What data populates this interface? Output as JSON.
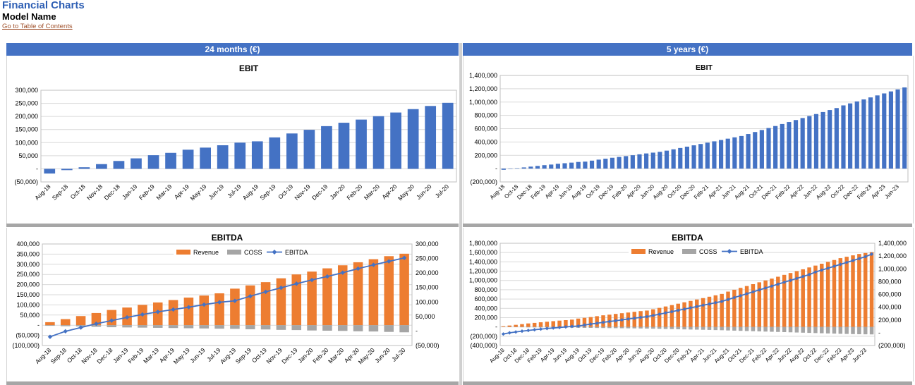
{
  "page": {
    "title": "Financial Charts",
    "subtitle": "Model Name",
    "toc_link": "Go to Table of Contents",
    "headers": {
      "left": "24 months (€)",
      "right": "5 years (€)"
    }
  },
  "colors": {
    "blue": "#4472c4",
    "orange": "#ed7d31",
    "gray": "#a5a5a5",
    "line": "#4472c4",
    "grid": "#d9d9d9"
  },
  "chart_data": [
    {
      "id": "ebit24",
      "type": "bar",
      "title": "EBIT",
      "categories": [
        "Aug-18",
        "Sep-18",
        "Oct-18",
        "Nov-18",
        "Dec-18",
        "Jan-19",
        "Feb-19",
        "Mar-19",
        "Apr-19",
        "May-19",
        "Jun-19",
        "Jul-19",
        "Aug-19",
        "Sep-19",
        "Oct-19",
        "Nov-19",
        "Dec-19",
        "Jan-20",
        "Feb-20",
        "Mar-20",
        "Apr-20",
        "May-20",
        "Jun-20",
        "Jul-20"
      ],
      "values": [
        -18000,
        -5000,
        6000,
        18000,
        30000,
        40000,
        52000,
        61000,
        73000,
        81000,
        90000,
        100000,
        105000,
        120000,
        135000,
        149000,
        163000,
        176000,
        188000,
        201000,
        215000,
        228000,
        240000,
        252000
      ],
      "ylim": [
        -50000,
        300000
      ],
      "yticks": [
        -50000,
        0,
        50000,
        100000,
        150000,
        200000,
        250000,
        300000
      ],
      "ytick_labels": [
        "(50,000)",
        "-",
        "50,000",
        "100,000",
        "150,000",
        "200,000",
        "250,000",
        "300,000"
      ]
    },
    {
      "id": "ebit60",
      "type": "bar",
      "title": "EBIT",
      "categories": [
        "Aug-18",
        "Sep-18",
        "Oct-18",
        "Nov-18",
        "Dec-18",
        "Jan-19",
        "Feb-19",
        "Mar-19",
        "Apr-19",
        "May-19",
        "Jun-19",
        "Jul-19",
        "Aug-19",
        "Sep-19",
        "Oct-19",
        "Nov-19",
        "Dec-19",
        "Jan-20",
        "Feb-20",
        "Mar-20",
        "Apr-20",
        "May-20",
        "Jun-20",
        "Jul-20",
        "Aug-20",
        "Sep-20",
        "Oct-20",
        "Nov-20",
        "Dec-20",
        "Jan-21",
        "Feb-21",
        "Mar-21",
        "Apr-21",
        "May-21",
        "Jun-21",
        "Jul-21",
        "Aug-21",
        "Sep-21",
        "Oct-21",
        "Nov-21",
        "Dec-21",
        "Jan-22",
        "Feb-22",
        "Mar-22",
        "Apr-22",
        "May-22",
        "Jun-22",
        "Jul-22",
        "Aug-22",
        "Sep-22",
        "Oct-22",
        "Nov-22",
        "Dec-22",
        "Jan-23",
        "Feb-23",
        "Mar-23",
        "Apr-23",
        "May-23",
        "Jun-23",
        "Jul-23"
      ],
      "values": [
        -18000,
        -5000,
        6000,
        18000,
        30000,
        40000,
        52000,
        61000,
        73000,
        81000,
        90000,
        100000,
        105000,
        120000,
        135000,
        149000,
        163000,
        176000,
        188000,
        201000,
        215000,
        228000,
        240000,
        252000,
        270000,
        290000,
        310000,
        330000,
        350000,
        370000,
        390000,
        410000,
        430000,
        450000,
        470000,
        490000,
        520000,
        550000,
        580000,
        610000,
        640000,
        670000,
        700000,
        730000,
        760000,
        790000,
        820000,
        850000,
        880000,
        910000,
        950000,
        980000,
        1010000,
        1040000,
        1070000,
        1100000,
        1130000,
        1160000,
        1190000,
        1220000
      ],
      "label_every": 2,
      "ylim": [
        -200000,
        1400000
      ],
      "yticks": [
        -200000,
        0,
        200000,
        400000,
        600000,
        800000,
        1000000,
        1200000,
        1400000
      ],
      "ytick_labels": [
        "(200,000)",
        "-",
        "200,000",
        "400,000",
        "600,000",
        "800,000",
        "1,000,000",
        "1,200,000",
        "1,400,000"
      ]
    },
    {
      "id": "ebitda24",
      "type": "bar+line",
      "title": "EBITDA",
      "categories": [
        "Aug-18",
        "Sep-18",
        "Oct-18",
        "Nov-18",
        "Dec-18",
        "Jan-19",
        "Feb-19",
        "Mar-19",
        "Apr-19",
        "May-19",
        "Jun-19",
        "Jul-19",
        "Aug-19",
        "Sep-19",
        "Oct-19",
        "Nov-19",
        "Dec-19",
        "Jan-20",
        "Feb-20",
        "Mar-20",
        "Apr-20",
        "May-20",
        "Jun-20",
        "Jul-20"
      ],
      "legend": [
        "Revenue",
        "COSS",
        "EBITDA"
      ],
      "series": [
        {
          "name": "Revenue",
          "axis": "left",
          "values": [
            15000,
            30000,
            45000,
            60000,
            75000,
            87000,
            100000,
            112000,
            124000,
            136000,
            146000,
            157000,
            180000,
            196000,
            212000,
            231000,
            250000,
            264000,
            280000,
            295000,
            310000,
            325000,
            340000,
            352000
          ]
        },
        {
          "name": "COSS",
          "axis": "left",
          "values": [
            -3000,
            -5000,
            -6000,
            -8000,
            -10000,
            -11000,
            -12000,
            -13000,
            -14000,
            -15000,
            -16000,
            -17000,
            -18000,
            -20000,
            -21000,
            -23000,
            -24000,
            -26000,
            -27000,
            -28000,
            -30000,
            -31000,
            -33000,
            -35000
          ]
        },
        {
          "name": "EBITDA",
          "axis": "right",
          "values": [
            -20000,
            -1000,
            12000,
            25000,
            36000,
            47000,
            57000,
            66000,
            74000,
            82000,
            91000,
            99000,
            104000,
            120000,
            135000,
            149000,
            163000,
            176000,
            188000,
            201000,
            215000,
            228000,
            240000,
            252000
          ]
        }
      ],
      "ylim_left": [
        -100000,
        400000
      ],
      "yticks_left": [
        -100000,
        -50000,
        0,
        50000,
        100000,
        150000,
        200000,
        250000,
        300000,
        350000,
        400000
      ],
      "ytick_labels_left": [
        "(100,000)",
        "(50,000)",
        "-",
        "50,000",
        "100,000",
        "150,000",
        "200,000",
        "250,000",
        "300,000",
        "350,000",
        "400,000"
      ],
      "ylim_right": [
        -50000,
        300000
      ],
      "yticks_right": [
        -50000,
        0,
        50000,
        100000,
        150000,
        200000,
        250000,
        300000
      ],
      "ytick_labels_right": [
        "(50,000)",
        "-",
        "50,000",
        "100,000",
        "150,000",
        "200,000",
        "250,000",
        "300,000"
      ]
    },
    {
      "id": "ebitda60",
      "type": "bar+line",
      "title": "EBITDA",
      "categories": [
        "Aug-18",
        "Sep-18",
        "Oct-18",
        "Nov-18",
        "Dec-18",
        "Jan-19",
        "Feb-19",
        "Mar-19",
        "Apr-19",
        "May-19",
        "Jun-19",
        "Jul-19",
        "Aug-19",
        "Sep-19",
        "Oct-19",
        "Nov-19",
        "Dec-19",
        "Jan-20",
        "Feb-20",
        "Mar-20",
        "Apr-20",
        "May-20",
        "Jun-20",
        "Jul-20",
        "Aug-20",
        "Sep-20",
        "Oct-20",
        "Nov-20",
        "Dec-20",
        "Jan-21",
        "Feb-21",
        "Mar-21",
        "Apr-21",
        "May-21",
        "Jun-21",
        "Jul-21",
        "Aug-21",
        "Sep-21",
        "Oct-21",
        "Nov-21",
        "Dec-21",
        "Jan-22",
        "Feb-22",
        "Mar-22",
        "Apr-22",
        "May-22",
        "Jun-22",
        "Jul-22",
        "Aug-22",
        "Sep-22",
        "Oct-22",
        "Nov-22",
        "Dec-22",
        "Jan-23",
        "Feb-23",
        "Mar-23",
        "Apr-23",
        "May-23",
        "Jun-23",
        "Jul-23"
      ],
      "label_every": 2,
      "legend": [
        "Revenue",
        "COSS",
        "EBITDA"
      ],
      "series": [
        {
          "name": "Revenue",
          "axis": "left",
          "values": [
            15000,
            30000,
            45000,
            60000,
            75000,
            87000,
            100000,
            112000,
            124000,
            136000,
            146000,
            157000,
            180000,
            196000,
            212000,
            231000,
            250000,
            264000,
            280000,
            295000,
            310000,
            325000,
            340000,
            352000,
            380000,
            410000,
            440000,
            470000,
            500000,
            530000,
            560000,
            590000,
            620000,
            650000,
            680000,
            710000,
            760000,
            800000,
            840000,
            880000,
            920000,
            960000,
            1000000,
            1040000,
            1080000,
            1120000,
            1160000,
            1200000,
            1240000,
            1280000,
            1320000,
            1360000,
            1400000,
            1440000,
            1480000,
            1510000,
            1540000,
            1570000,
            1590000,
            1610000
          ]
        },
        {
          "name": "COSS",
          "axis": "left",
          "values": [
            -3000,
            -5000,
            -6000,
            -8000,
            -10000,
            -11000,
            -12000,
            -13000,
            -14000,
            -15000,
            -16000,
            -17000,
            -18000,
            -20000,
            -21000,
            -23000,
            -24000,
            -26000,
            -27000,
            -28000,
            -30000,
            -31000,
            -33000,
            -35000,
            -38000,
            -41000,
            -44000,
            -47000,
            -50000,
            -53000,
            -56000,
            -59000,
            -62000,
            -65000,
            -68000,
            -71000,
            -76000,
            -80000,
            -84000,
            -88000,
            -92000,
            -96000,
            -100000,
            -104000,
            -108000,
            -112000,
            -116000,
            -120000,
            -124000,
            -128000,
            -132000,
            -136000,
            -140000,
            -144000,
            -148000,
            -151000,
            -154000,
            -157000,
            -159000,
            -161000
          ]
        },
        {
          "name": "EBITDA",
          "axis": "right",
          "values": [
            -20000,
            -1000,
            12000,
            25000,
            36000,
            47000,
            57000,
            66000,
            74000,
            82000,
            91000,
            99000,
            104000,
            120000,
            135000,
            149000,
            163000,
            176000,
            188000,
            201000,
            215000,
            228000,
            240000,
            252000,
            270000,
            290000,
            310000,
            330000,
            350000,
            370000,
            390000,
            410000,
            430000,
            450000,
            470000,
            490000,
            520000,
            550000,
            580000,
            610000,
            640000,
            670000,
            700000,
            730000,
            760000,
            790000,
            820000,
            850000,
            880000,
            910000,
            950000,
            980000,
            1010000,
            1040000,
            1070000,
            1100000,
            1130000,
            1160000,
            1190000,
            1230000
          ]
        }
      ],
      "ylim_left": [
        -400000,
        1800000
      ],
      "yticks_left": [
        -400000,
        -200000,
        0,
        200000,
        400000,
        600000,
        800000,
        1000000,
        1200000,
        1400000,
        1600000,
        1800000
      ],
      "ytick_labels_left": [
        "(400,000)",
        "(200,000)",
        "-",
        "200,000",
        "400,000",
        "600,000",
        "800,000",
        "1,000,000",
        "1,200,000",
        "1,400,000",
        "1,600,000",
        "1,800,000"
      ],
      "ylim_right": [
        -200000,
        1400000
      ],
      "yticks_right": [
        -200000,
        0,
        200000,
        400000,
        600000,
        800000,
        1000000,
        1200000,
        1400000
      ],
      "ytick_labels_right": [
        "(200,000)",
        "-",
        "200,000",
        "400,000",
        "600,000",
        "800,000",
        "1,000,000",
        "1,200,000",
        "1,400,000"
      ]
    }
  ]
}
